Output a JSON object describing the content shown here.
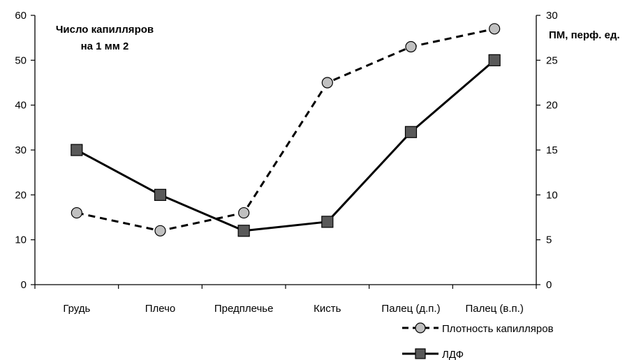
{
  "chart_data": {
    "type": "line",
    "categories": [
      "Грудь",
      "Плечо",
      "Предплечье",
      "Кисть",
      "Палец (д.п.)",
      "Палец (в.п.)"
    ],
    "y_left_label_line1": "Число капилляров",
    "y_left_label_line2": "на 1 мм 2",
    "y_right_label": "ПМ, перф. ед.",
    "ylim_left": [
      0,
      60
    ],
    "ylim_right": [
      0,
      30
    ],
    "yticks_left": [
      0,
      10,
      20,
      30,
      40,
      50,
      60
    ],
    "yticks_right": [
      0,
      5,
      10,
      15,
      20,
      25,
      30
    ],
    "grid": false,
    "legend_position": "bottom-right",
    "series": [
      {
        "name": "Плотность капилляров",
        "axis": "left",
        "style": "dashed",
        "marker": "circle",
        "color": "#000000",
        "marker_fill": "#c0c0c0",
        "values": [
          16,
          12,
          16,
          45,
          53,
          57
        ]
      },
      {
        "name": "ЛДФ",
        "axis": "right",
        "style": "solid",
        "marker": "square",
        "color": "#000000",
        "marker_fill": "#595959",
        "values": [
          15,
          10,
          6,
          7,
          17,
          25
        ]
      }
    ]
  }
}
